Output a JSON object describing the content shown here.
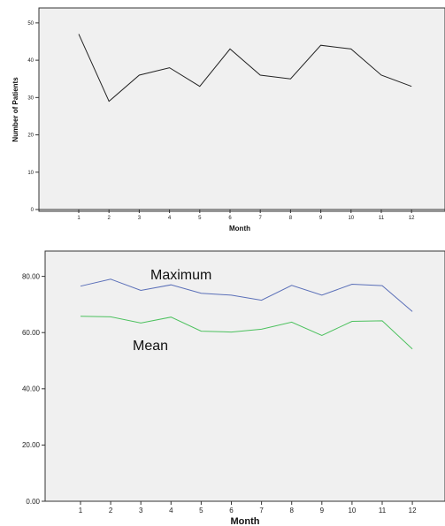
{
  "chart_data": [
    {
      "type": "line",
      "xlabel": "Month",
      "ylabel": "Number of Patients",
      "x": [
        1,
        2,
        3,
        4,
        5,
        6,
        7,
        8,
        9,
        10,
        11,
        12
      ],
      "x_tick_labels": [
        "1",
        "2",
        "3",
        "4",
        "5",
        "6",
        "7",
        "8",
        "9",
        "10",
        "11",
        "12"
      ],
      "y_tick_labels": [
        "0",
        "10",
        "20",
        "30",
        "40",
        "50"
      ],
      "ylim": [
        0,
        54
      ],
      "grid": false,
      "series": [
        {
          "values": [
            47,
            29,
            36,
            38,
            33,
            43,
            36,
            35,
            44,
            43,
            36,
            33
          ],
          "color": "#222222"
        }
      ]
    },
    {
      "type": "line",
      "xlabel": "Month",
      "ylabel": "",
      "x": [
        1,
        2,
        3,
        4,
        5,
        6,
        7,
        8,
        9,
        10,
        11,
        12
      ],
      "x_tick_labels": [
        "1",
        "2",
        "3",
        "4",
        "5",
        "6",
        "7",
        "8",
        "9",
        "10",
        "11",
        "12"
      ],
      "y_tick_labels": [
        "0.00",
        "20.00",
        "40.00",
        "60.00",
        "80.00"
      ],
      "ylim": [
        0,
        89
      ],
      "grid": false,
      "series": [
        {
          "name": "Maximum",
          "values": [
            76.5,
            79,
            75,
            77,
            74,
            73.3,
            71.5,
            76.8,
            73.3,
            77.2,
            76.7,
            67.5
          ],
          "color": "#5a6fb8"
        },
        {
          "name": "Mean",
          "values": [
            65.8,
            65.6,
            63.4,
            65.5,
            60.5,
            60.2,
            61.2,
            63.7,
            59,
            64,
            64.2,
            54.2
          ],
          "color": "#4cc15e"
        }
      ],
      "annotations": [
        "Maximum",
        "Mean"
      ]
    }
  ]
}
